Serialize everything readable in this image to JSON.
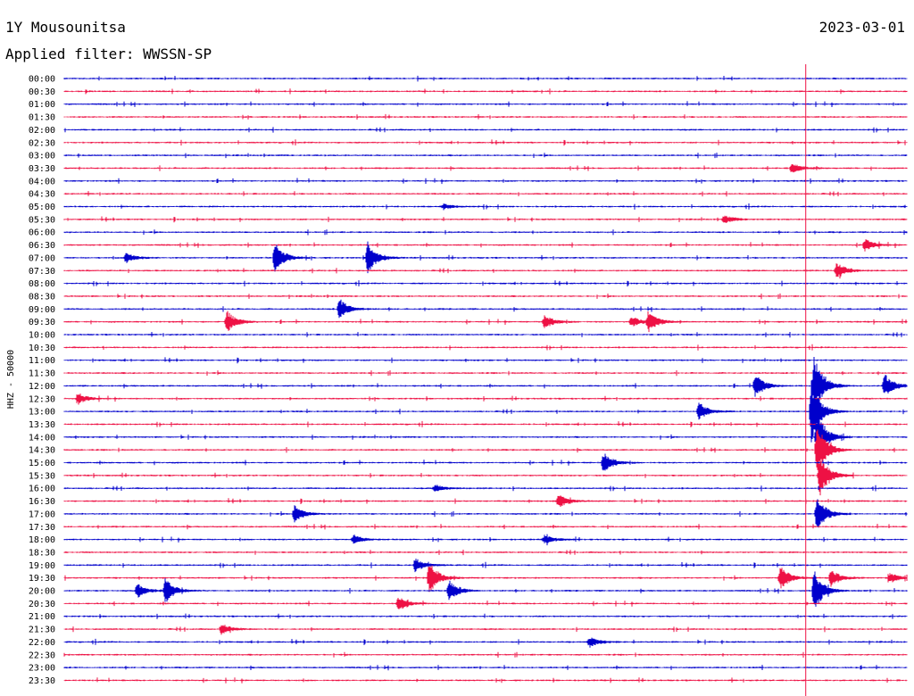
{
  "header": {
    "station": "1Y Mousounitsa",
    "date": "2023-03-01",
    "filter": "Applied filter: WWSSN-SP"
  },
  "chart_data": {
    "type": "line",
    "title": "1Y Mousounitsa",
    "subtitle": "Applied filter: WWSSN-SP",
    "ylabel": "HHZ - 50000",
    "xlabel": "",
    "rows": [
      "00:00",
      "00:30",
      "01:00",
      "01:30",
      "02:00",
      "02:30",
      "03:00",
      "03:30",
      "04:00",
      "04:30",
      "05:00",
      "05:30",
      "06:00",
      "06:30",
      "07:00",
      "07:30",
      "08:00",
      "08:30",
      "09:00",
      "09:30",
      "10:00",
      "10:30",
      "11:00",
      "11:30",
      "12:00",
      "12:30",
      "13:00",
      "13:30",
      "14:00",
      "14:30",
      "15:00",
      "15:30",
      "16:00",
      "16:30",
      "17:00",
      "17:30",
      "18:00",
      "18:30",
      "19:00",
      "19:30",
      "20:00",
      "20:30",
      "21:00",
      "21:30",
      "22:00",
      "22:30",
      "23:00",
      "23:30"
    ],
    "x_range_minutes": [
      0,
      30
    ],
    "colors": {
      "even": "#0000cc",
      "odd": "#ee1144"
    },
    "marker_minute": 26.4,
    "events": [
      {
        "row": 7,
        "minute": 25.9,
        "amp": 6
      },
      {
        "row": 10,
        "minute": 13.5,
        "amp": 3
      },
      {
        "row": 11,
        "minute": 23.5,
        "amp": 5
      },
      {
        "row": 13,
        "minute": 28.5,
        "amp": 7
      },
      {
        "row": 14,
        "minute": 2.2,
        "amp": 6
      },
      {
        "row": 14,
        "minute": 7.5,
        "amp": 18
      },
      {
        "row": 14,
        "minute": 10.8,
        "amp": 18
      },
      {
        "row": 15,
        "minute": 27.5,
        "amp": 10
      },
      {
        "row": 18,
        "minute": 9.8,
        "amp": 12
      },
      {
        "row": 19,
        "minute": 5.8,
        "amp": 12
      },
      {
        "row": 19,
        "minute": 17.1,
        "amp": 8
      },
      {
        "row": 19,
        "minute": 20.2,
        "amp": 6
      },
      {
        "row": 19,
        "minute": 20.8,
        "amp": 12
      },
      {
        "row": 24,
        "minute": 24.6,
        "amp": 14
      },
      {
        "row": 24,
        "minute": 29.2,
        "amp": 14
      },
      {
        "row": 24,
        "minute": 26.7,
        "amp": 34
      },
      {
        "row": 25,
        "minute": 0.5,
        "amp": 6
      },
      {
        "row": 26,
        "minute": 22.6,
        "amp": 10
      },
      {
        "row": 26,
        "minute": 26.6,
        "amp": 34
      },
      {
        "row": 28,
        "minute": 26.8,
        "amp": 30
      },
      {
        "row": 29,
        "minute": 26.8,
        "amp": 32
      },
      {
        "row": 30,
        "minute": 19.2,
        "amp": 12
      },
      {
        "row": 31,
        "minute": 26.9,
        "amp": 24
      },
      {
        "row": 32,
        "minute": 13.2,
        "amp": 4
      },
      {
        "row": 33,
        "minute": 17.6,
        "amp": 8
      },
      {
        "row": 34,
        "minute": 8.2,
        "amp": 10
      },
      {
        "row": 34,
        "minute": 26.8,
        "amp": 20
      },
      {
        "row": 36,
        "minute": 10.3,
        "amp": 5
      },
      {
        "row": 36,
        "minute": 17.1,
        "amp": 5
      },
      {
        "row": 38,
        "minute": 12.5,
        "amp": 8
      },
      {
        "row": 39,
        "minute": 13.0,
        "amp": 18
      },
      {
        "row": 39,
        "minute": 25.5,
        "amp": 14
      },
      {
        "row": 39,
        "minute": 27.3,
        "amp": 10
      },
      {
        "row": 39,
        "minute": 29.4,
        "amp": 6
      },
      {
        "row": 40,
        "minute": 2.6,
        "amp": 8
      },
      {
        "row": 40,
        "minute": 3.6,
        "amp": 14
      },
      {
        "row": 40,
        "minute": 13.7,
        "amp": 12
      },
      {
        "row": 40,
        "minute": 26.7,
        "amp": 24
      },
      {
        "row": 41,
        "minute": 11.9,
        "amp": 8
      },
      {
        "row": 43,
        "minute": 5.6,
        "amp": 6
      },
      {
        "row": 44,
        "minute": 18.7,
        "amp": 6
      }
    ]
  }
}
